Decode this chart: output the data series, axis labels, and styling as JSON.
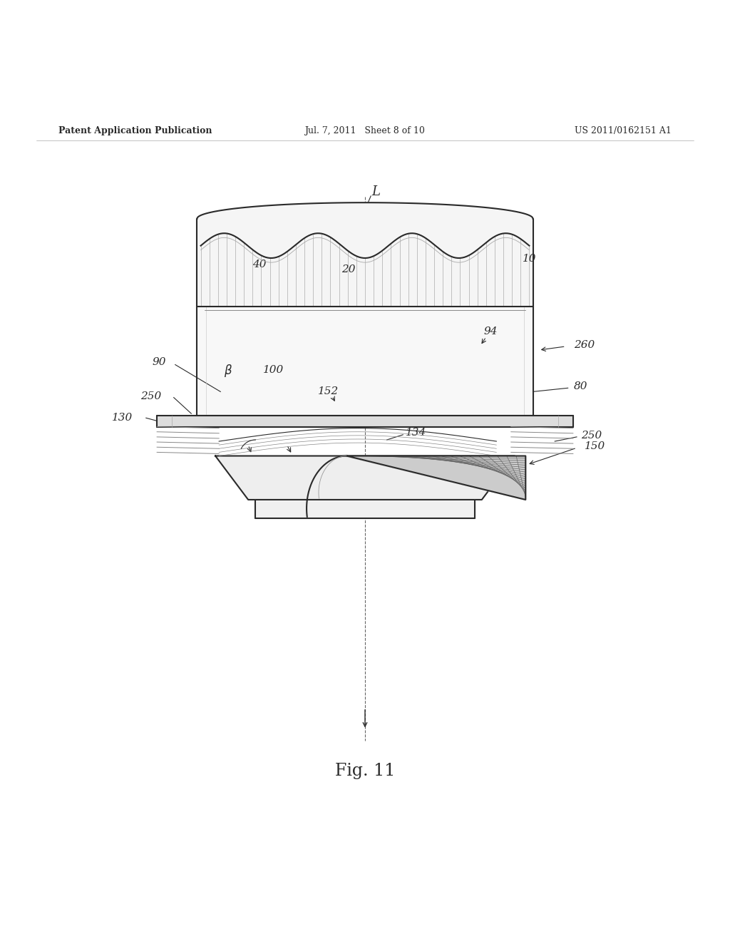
{
  "title_left": "Patent Application Publication",
  "title_center": "Jul. 7, 2011   Sheet 8 of 10",
  "title_right": "US 2011/0162151 A1",
  "fig_label": "Fig. 11",
  "bg_color": "#ffffff",
  "line_color": "#2a2a2a"
}
